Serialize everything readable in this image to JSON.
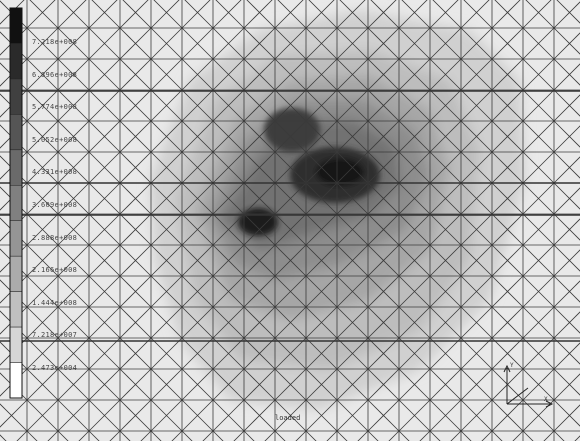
{
  "legend": {
    "labels": [
      "7.218e+008",
      "6.896e+008",
      "5.774e+008",
      "5.052e+008",
      "4.331e+008",
      "3.609e+008",
      "2.888e+008",
      "2.166e+008",
      "1.444e+008",
      "7.218e+007",
      "2.473e+004"
    ],
    "colors": [
      "#111111",
      "#2a2a2a",
      "#404040",
      "#555555",
      "#6a6a6a",
      "#808080",
      "#959595",
      "#ababab",
      "#c0c0c0",
      "#d6d6d6",
      "#ffffff"
    ]
  },
  "caption_top": "loaded",
  "caption_bottom": "",
  "axes": {
    "y": "Y",
    "x": "X"
  }
}
